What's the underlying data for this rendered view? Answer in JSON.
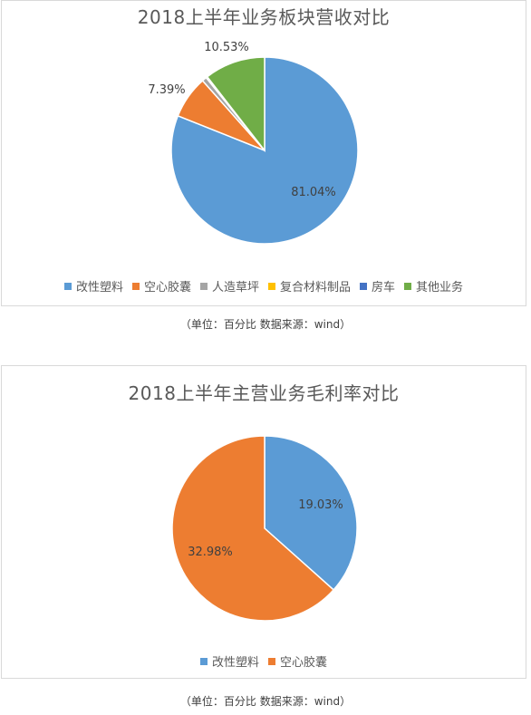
{
  "chart_data": [
    {
      "type": "pie",
      "title": "2018上半年业务板块营收对比",
      "series": [
        {
          "name": "改性塑料",
          "value": 81.04,
          "label": "81.04%",
          "color": "#5B9BD5"
        },
        {
          "name": "空心胶囊",
          "value": 7.39,
          "label": "7.39%",
          "color": "#ED7D31"
        },
        {
          "name": "人造草坪",
          "value": 0.8,
          "label": "",
          "color": "#A5A5A5"
        },
        {
          "name": "复合材料制品",
          "value": 0.12,
          "label": "",
          "color": "#FFC000"
        },
        {
          "name": "房车",
          "value": 0.12,
          "label": "",
          "color": "#4472C4"
        },
        {
          "name": "其他业务",
          "value": 10.53,
          "label": "10.53%",
          "color": "#70AD47"
        }
      ],
      "legend_position": "bottom"
    },
    {
      "type": "pie",
      "title": "2018上半年主营业务毛利率对比",
      "series": [
        {
          "name": "改性塑料",
          "value": 19.03,
          "label": "19.03%",
          "color": "#5B9BD5"
        },
        {
          "name": "空心胶囊",
          "value": 32.98,
          "label": "32.98%",
          "color": "#ED7D31"
        }
      ],
      "legend_position": "bottom"
    }
  ],
  "captions": [
    "（单位：百分比  数据来源：wind）",
    "（单位：百分比  数据来源：wind）"
  ]
}
